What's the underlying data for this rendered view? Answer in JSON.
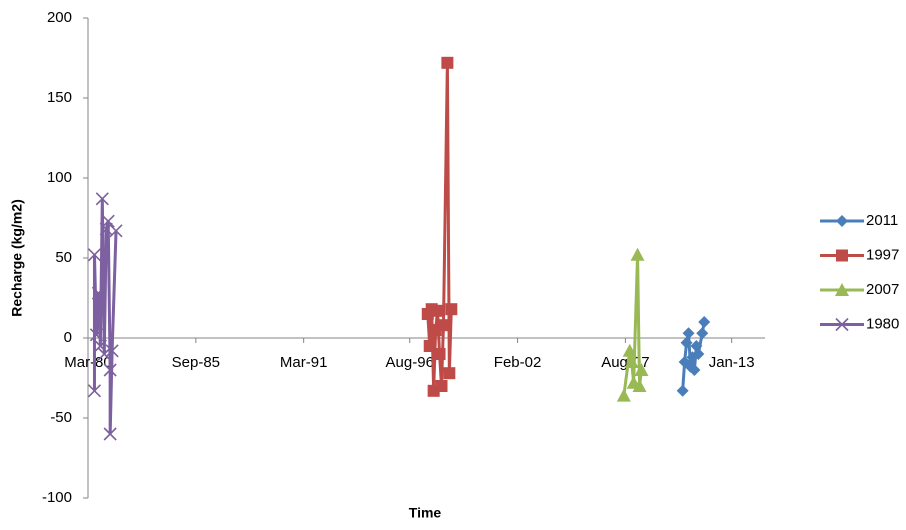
{
  "chart_data": {
    "type": "line",
    "y_label": "Recharge (kg/m2)",
    "x_label": "Time",
    "xlim": [
      1980.17,
      2014.7
    ],
    "xticks": [
      {
        "value": 1980.17,
        "label": "Mar-80"
      },
      {
        "value": 1985.67,
        "label": "Sep-85"
      },
      {
        "value": 1991.17,
        "label": "Mar-91"
      },
      {
        "value": 1996.58,
        "label": "Aug-96"
      },
      {
        "value": 2002.08,
        "label": "Feb-02"
      },
      {
        "value": 2007.58,
        "label": "Aug-07"
      },
      {
        "value": 2013.0,
        "label": "Jan-13"
      }
    ],
    "ylim": [
      -100,
      200
    ],
    "yticks": [
      -100,
      -50,
      0,
      50,
      100,
      150,
      200
    ],
    "legend": "right",
    "series": [
      {
        "name": "2011",
        "color": "#4a7ebb",
        "marker": "diamond",
        "x": [
          2010.5,
          2010.6,
          2010.7,
          2010.8,
          2010.9,
          2011.0,
          2011.1,
          2011.2,
          2011.3,
          2011.5,
          2011.6
        ],
        "values": [
          -33,
          -15,
          -3,
          3,
          -18,
          -12,
          -20,
          -5,
          -10,
          3,
          10
        ]
      },
      {
        "name": "1997",
        "color": "#be4b48",
        "marker": "square",
        "x": [
          1997.5,
          1997.6,
          1997.7,
          1997.8,
          1997.9,
          1998.0,
          1998.1,
          1998.2,
          1998.3,
          1998.5,
          1998.6,
          1998.7
        ],
        "values": [
          15,
          -5,
          18,
          -33,
          5,
          17,
          -10,
          -30,
          8,
          172,
          -22,
          18
        ]
      },
      {
        "name": "2007",
        "color": "#98b954",
        "marker": "triangle",
        "x": [
          2007.5,
          2007.8,
          2007.9,
          2008.0,
          2008.2,
          2008.3,
          2008.4
        ],
        "values": [
          -36,
          -8,
          -15,
          -28,
          52,
          -30,
          -20
        ]
      },
      {
        "name": "1980",
        "color": "#7d60a0",
        "marker": "x",
        "x": [
          1980.5,
          1980.5,
          1980.6,
          1980.7,
          1980.8,
          1980.9,
          1981.0,
          1981.1,
          1981.2,
          1981.3,
          1981.3,
          1981.4,
          1981.6
        ],
        "values": [
          -33,
          52,
          2,
          28,
          -5,
          87,
          -10,
          68,
          73,
          -20,
          -60,
          -8,
          67
        ]
      }
    ]
  }
}
